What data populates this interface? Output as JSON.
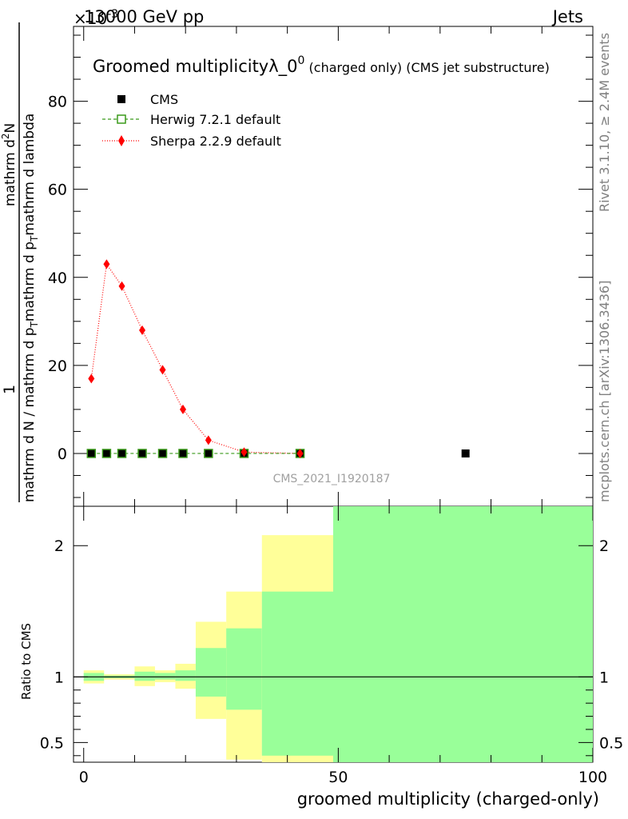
{
  "header": {
    "energy": "13000 GeV pp",
    "category": "Jets",
    "exponent": "×10",
    "exponent_power": "-3"
  },
  "side_labels": {
    "rivet": "Rivet 3.1.10, ≥ 2.4M events",
    "mcplots": "mcplots.cern.ch [arXiv:1306.3436]"
  },
  "watermark": "CMS_2021_I1920187",
  "main_title": {
    "title": "Groomed multiplicityλ_0",
    "superscript": "0",
    "suffix": " (charged only) (CMS jet substructure)"
  },
  "y_axis_main": {
    "label_parts": [
      "1",
      "mathrm d N / mathrm d p",
      "T",
      "mathrm d p",
      "T",
      "mathrm d lambda",
      "mathrm d",
      "2",
      "N"
    ]
  },
  "y_axis_ratio": {
    "label": "Ratio to CMS"
  },
  "x_axis": {
    "label": "groomed multiplicity (charged-only)"
  },
  "legend": [
    {
      "name": "CMS",
      "style": "data",
      "color": "#000000"
    },
    {
      "name": "Herwig 7.2.1 default",
      "style": "dashed-square",
      "color": "#3a9a1a"
    },
    {
      "name": "Sherpa 2.2.9 default",
      "style": "dotted-diamond",
      "color": "#ff0000"
    }
  ],
  "chart_data": {
    "type": "line",
    "x_range": [
      -2,
      100
    ],
    "main_y_range": [
      -12,
      97
    ],
    "main_y_ticks": [
      0,
      20,
      40,
      60,
      80
    ],
    "ratio_y_range": [
      0.35,
      2.3
    ],
    "ratio_y_ticks": [
      0.5,
      1,
      2
    ],
    "x_ticks": [
      0,
      50,
      100
    ],
    "series": [
      {
        "name": "CMS",
        "x": [
          1.5,
          4.5,
          7.5,
          11.5,
          15.5,
          19.5,
          24.5,
          31.5,
          42.5,
          75
        ],
        "values": [
          0,
          0,
          0,
          0,
          0,
          0,
          0,
          0,
          0,
          0
        ]
      },
      {
        "name": "Herwig 7.2.1 default",
        "x": [
          1.5,
          4.5,
          7.5,
          11.5,
          15.5,
          19.5,
          24.5,
          31.5,
          42.5
        ],
        "values": [
          0,
          0,
          0,
          0,
          0,
          0,
          0,
          0,
          0
        ]
      },
      {
        "name": "Sherpa 2.2.9 default",
        "x": [
          1.5,
          4.5,
          7.5,
          11.5,
          15.5,
          19.5,
          24.5,
          31.5,
          42.5
        ],
        "values": [
          17,
          43,
          38,
          28,
          19,
          10,
          3,
          0.3,
          0
        ]
      }
    ],
    "ratio_bands": [
      {
        "x0": 0,
        "x1": 4,
        "yellow": [
          0.95,
          1.05
        ],
        "green": [
          0.97,
          1.03
        ]
      },
      {
        "x0": 4,
        "x1": 10,
        "yellow": [
          0.98,
          1.02
        ],
        "green": [
          0.99,
          1.01
        ]
      },
      {
        "x0": 10,
        "x1": 14,
        "yellow": [
          0.93,
          1.08
        ],
        "green": [
          0.97,
          1.04
        ]
      },
      {
        "x0": 14,
        "x1": 18,
        "yellow": [
          0.96,
          1.05
        ],
        "green": [
          0.98,
          1.03
        ]
      },
      {
        "x0": 18,
        "x1": 22,
        "yellow": [
          0.91,
          1.1
        ],
        "green": [
          0.97,
          1.05
        ]
      },
      {
        "x0": 22,
        "x1": 28,
        "yellow": [
          0.68,
          1.42
        ],
        "green": [
          0.85,
          1.22
        ]
      },
      {
        "x0": 28,
        "x1": 35,
        "yellow": [
          0.37,
          1.65
        ],
        "green": [
          0.75,
          1.37
        ]
      },
      {
        "x0": 35,
        "x1": 49,
        "yellow": [
          0.35,
          2.08
        ],
        "green": [
          0.4,
          1.65
        ]
      },
      {
        "x0": 49,
        "x1": 100,
        "yellow": [
          0.35,
          2.3
        ],
        "green": [
          0.35,
          2.3
        ]
      }
    ],
    "ratio_reference": 1
  }
}
